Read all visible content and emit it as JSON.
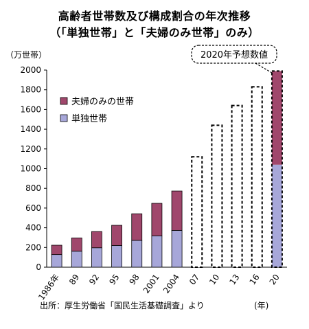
{
  "title_line1": "高齢者世帯数及び構成割合の年次推移",
  "title_line2": "（「単独世帯」と「夫婦のみ世帯」のみ）",
  "source": "出所：厚生労働省「国民生活基礎調査」より",
  "callout": "2020年予想数値",
  "colors": {
    "couple": "#A0476C",
    "single": "#A7A7D9",
    "edge": "#000000"
  },
  "chart_data": {
    "type": "bar",
    "stacked": true,
    "y_unit_label": "（万世帯）",
    "x_unit_label": "(年)",
    "ylim": [
      0,
      2000
    ],
    "yticks": [
      0,
      200,
      400,
      600,
      800,
      1000,
      1200,
      1400,
      1600,
      1800,
      2000
    ],
    "categories": [
      "1986年",
      "89",
      "92",
      "95",
      "98",
      "2001",
      "2004",
      "07",
      "10",
      "13",
      "16",
      "20"
    ],
    "series": [
      {
        "name": "単独世帯",
        "values": [
          128,
          162,
          197,
          220,
          272,
          318,
          373,
          null,
          null,
          null,
          null,
          1040
        ]
      },
      {
        "name": "夫婦のみの世帯",
        "values": [
          95,
          135,
          165,
          205,
          270,
          330,
          400,
          null,
          null,
          null,
          null,
          950
        ]
      }
    ],
    "projected_totals": [
      null,
      null,
      null,
      null,
      null,
      null,
      null,
      1120,
      1440,
      1640,
      1830,
      1990
    ],
    "legend_order": [
      "夫婦のみの世帯",
      "単独世帯"
    ],
    "legend_position": "upper-left"
  }
}
